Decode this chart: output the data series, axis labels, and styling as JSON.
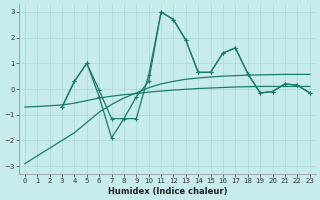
{
  "xlabel": "Humidex (Indice chaleur)",
  "bg_color": "#c8ecec",
  "line_color": "#1a7a6e",
  "grid_color": "#a8d8d8",
  "xlim": [
    -0.5,
    23.5
  ],
  "ylim": [
    -3.3,
    3.3
  ],
  "yticks": [
    -3,
    -2,
    -1,
    0,
    1,
    2,
    3
  ],
  "xticks": [
    0,
    1,
    2,
    3,
    4,
    5,
    6,
    7,
    8,
    9,
    10,
    11,
    12,
    13,
    14,
    15,
    16,
    17,
    18,
    19,
    20,
    21,
    22,
    23
  ],
  "line1_x": [
    0,
    1,
    2,
    3,
    4,
    5,
    6,
    7,
    8,
    9,
    10,
    11,
    12,
    13,
    14,
    15,
    16,
    17,
    18,
    19,
    20,
    21,
    22,
    23
  ],
  "line1_y": [
    -2.9,
    -2.6,
    -2.3,
    -2.0,
    -1.7,
    -1.3,
    -0.9,
    -0.6,
    -0.35,
    -0.15,
    0.05,
    0.2,
    0.3,
    0.38,
    0.43,
    0.47,
    0.5,
    0.52,
    0.54,
    0.55,
    0.56,
    0.57,
    0.57,
    0.57
  ],
  "line2_x": [
    3,
    4,
    5,
    6,
    7,
    8,
    9,
    10,
    11,
    12,
    13,
    14,
    15,
    16,
    17,
    18,
    19,
    20,
    21,
    22,
    23
  ],
  "line2_y": [
    -0.7,
    0.3,
    1.0,
    -0.05,
    -1.15,
    -1.15,
    -1.15,
    0.55,
    3.0,
    2.7,
    1.9,
    0.65,
    0.65,
    1.4,
    1.6,
    0.6,
    -0.15,
    -0.1,
    0.2,
    0.15,
    -0.15
  ],
  "line3_x": [
    3,
    4,
    5,
    6,
    7,
    8,
    9,
    10,
    11,
    12,
    13,
    14,
    15,
    16,
    17,
    18,
    19,
    20,
    21,
    22,
    23
  ],
  "line3_y": [
    -0.7,
    0.3,
    1.0,
    -0.3,
    -1.9,
    -1.15,
    -0.3,
    0.3,
    3.0,
    2.7,
    1.9,
    0.65,
    0.65,
    1.4,
    1.6,
    0.6,
    -0.15,
    -0.1,
    0.2,
    0.15,
    -0.15
  ],
  "line4_x": [
    0,
    1,
    2,
    3,
    4,
    5,
    6,
    7,
    8,
    9,
    10,
    11,
    12,
    13,
    14,
    15,
    16,
    17,
    18,
    19,
    20,
    21,
    22,
    23
  ],
  "line4_y": [
    -0.7,
    -0.68,
    -0.65,
    -0.62,
    -0.55,
    -0.45,
    -0.35,
    -0.28,
    -0.22,
    -0.18,
    -0.12,
    -0.08,
    -0.04,
    -0.01,
    0.02,
    0.04,
    0.06,
    0.08,
    0.09,
    0.1,
    0.1,
    0.1,
    0.1,
    0.1
  ]
}
